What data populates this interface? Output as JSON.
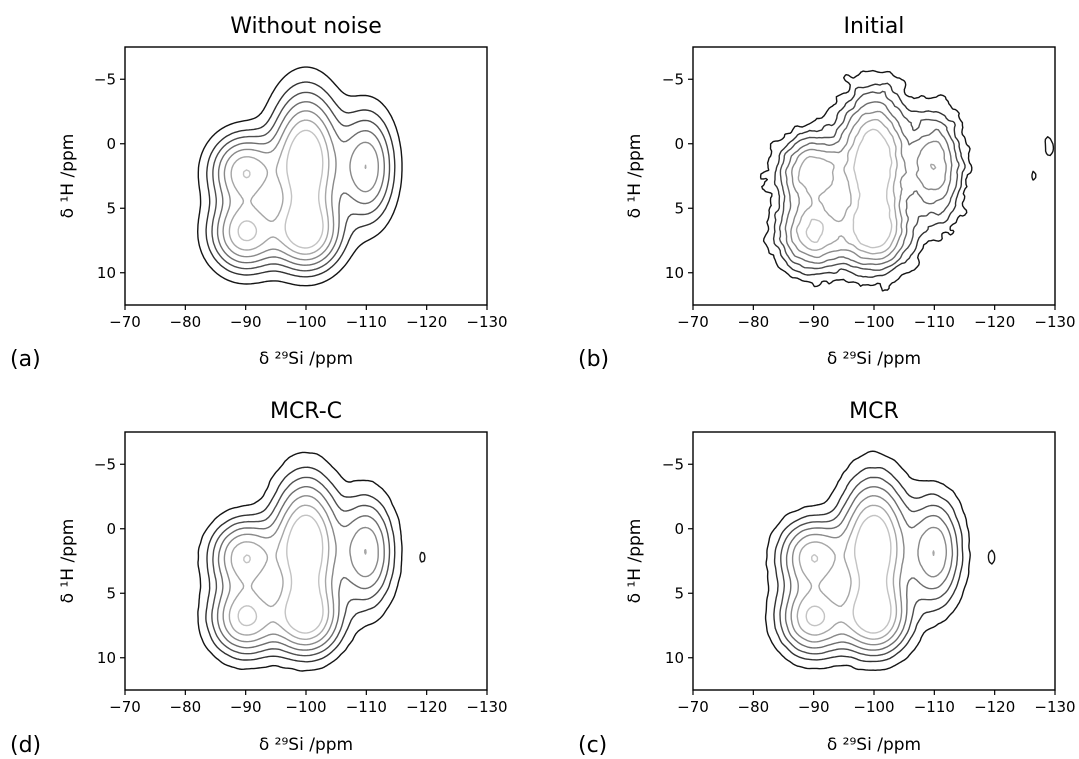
{
  "figure": {
    "panels": [
      {
        "id": "a",
        "label": "(a)",
        "title": "Without noise",
        "xlabel": "δ ²⁹Si /ppm",
        "ylabel": "δ ¹H /ppm"
      },
      {
        "id": "b",
        "label": "(b)",
        "title": "Initial",
        "xlabel": "δ ²⁹Si /ppm",
        "ylabel": "δ ¹H /ppm"
      },
      {
        "id": "d",
        "label": "(d)",
        "title": "MCR-C",
        "xlabel": "δ ²⁹Si /ppm",
        "ylabel": "δ ¹H /ppm"
      },
      {
        "id": "c",
        "label": "(c)",
        "title": "MCR",
        "xlabel": "δ ²⁹Si /ppm",
        "ylabel": "δ ¹H /ppm"
      }
    ]
  },
  "chart_data": [
    {
      "type": "contour",
      "title": "Without noise",
      "xlabel": "δ ²⁹Si /ppm",
      "ylabel": "δ ¹H /ppm",
      "xlim": [
        -70,
        -130
      ],
      "ylim": [
        12.5,
        -7.5
      ],
      "xticks": [
        -70,
        -80,
        -90,
        -100,
        -110,
        -120,
        -130
      ],
      "yticks": [
        -5,
        0,
        5,
        10
      ],
      "peaks": [
        {
          "x": -90,
          "y": 2.2,
          "sx": 3.4,
          "sy": 1.7,
          "a": 0.7
        },
        {
          "x": -100,
          "y": 1.4,
          "sx": 3.3,
          "sy": 3.0,
          "a": 1.0
        },
        {
          "x": -110,
          "y": 1.8,
          "sx": 2.7,
          "sy": 2.5,
          "a": 0.55
        },
        {
          "x": -90,
          "y": 6.9,
          "sx": 3.4,
          "sy": 1.7,
          "a": 0.75
        },
        {
          "x": -100,
          "y": 6.9,
          "sx": 3.4,
          "sy": 1.7,
          "a": 0.8
        }
      ],
      "levels": [
        0.05,
        0.12,
        0.2,
        0.3,
        0.42,
        0.56,
        0.72
      ],
      "noise": 0
    },
    {
      "type": "contour",
      "title": "Initial",
      "xlabel": "δ ²⁹Si /ppm",
      "ylabel": "δ ¹H /ppm",
      "xlim": [
        -70,
        -130
      ],
      "ylim": [
        12.5,
        -7.5
      ],
      "xticks": [
        -70,
        -80,
        -90,
        -100,
        -110,
        -120,
        -130
      ],
      "yticks": [
        -5,
        0,
        5,
        10
      ],
      "peaks": [
        {
          "x": -90,
          "y": 2.2,
          "sx": 3.4,
          "sy": 1.7,
          "a": 0.7
        },
        {
          "x": -100,
          "y": 1.4,
          "sx": 3.3,
          "sy": 3.0,
          "a": 1.0
        },
        {
          "x": -110,
          "y": 1.8,
          "sx": 2.7,
          "sy": 2.5,
          "a": 0.55
        },
        {
          "x": -90,
          "y": 6.9,
          "sx": 3.4,
          "sy": 1.7,
          "a": 0.75
        },
        {
          "x": -100,
          "y": 6.9,
          "sx": 3.4,
          "sy": 1.7,
          "a": 0.8
        },
        {
          "x": -129,
          "y": 0.3,
          "sx": 0.5,
          "sy": 0.6,
          "a": 0.1
        },
        {
          "x": -126.5,
          "y": 2.5,
          "sx": 0.3,
          "sy": 0.5,
          "a": 0.08
        }
      ],
      "levels": [
        0.05,
        0.12,
        0.2,
        0.3,
        0.42,
        0.56,
        0.72
      ],
      "noise": 0.035
    },
    {
      "type": "contour",
      "title": "MCR-C",
      "xlabel": "δ ²⁹Si /ppm",
      "ylabel": "δ ¹H /ppm",
      "xlim": [
        -70,
        -130
      ],
      "ylim": [
        12.5,
        -7.5
      ],
      "xticks": [
        -70,
        -80,
        -90,
        -100,
        -110,
        -120,
        -130
      ],
      "yticks": [
        -5,
        0,
        5,
        10
      ],
      "peaks": [
        {
          "x": -90,
          "y": 2.2,
          "sx": 3.4,
          "sy": 1.7,
          "a": 0.7
        },
        {
          "x": -100,
          "y": 1.4,
          "sx": 3.3,
          "sy": 3.0,
          "a": 1.0
        },
        {
          "x": -110,
          "y": 1.8,
          "sx": 2.7,
          "sy": 2.5,
          "a": 0.55
        },
        {
          "x": -90,
          "y": 6.9,
          "sx": 3.4,
          "sy": 1.7,
          "a": 0.75
        },
        {
          "x": -100,
          "y": 6.9,
          "sx": 3.4,
          "sy": 1.7,
          "a": 0.8
        },
        {
          "x": -119.3,
          "y": 2.2,
          "sx": 0.4,
          "sy": 0.4,
          "a": 0.08
        }
      ],
      "levels": [
        0.05,
        0.12,
        0.2,
        0.3,
        0.42,
        0.56,
        0.72
      ],
      "noise": 0.004
    },
    {
      "type": "contour",
      "title": "MCR",
      "xlabel": "δ ²⁹Si /ppm",
      "ylabel": "δ ¹H /ppm",
      "xlim": [
        -70,
        -130
      ],
      "ylim": [
        12.5,
        -7.5
      ],
      "xticks": [
        -70,
        -80,
        -90,
        -100,
        -110,
        -120,
        -130
      ],
      "yticks": [
        -5,
        0,
        5,
        10
      ],
      "peaks": [
        {
          "x": -90,
          "y": 2.2,
          "sx": 3.4,
          "sy": 1.7,
          "a": 0.7
        },
        {
          "x": -100,
          "y": 1.4,
          "sx": 3.3,
          "sy": 3.0,
          "a": 1.0
        },
        {
          "x": -110,
          "y": 1.8,
          "sx": 2.7,
          "sy": 2.5,
          "a": 0.55
        },
        {
          "x": -90,
          "y": 6.9,
          "sx": 3.4,
          "sy": 1.7,
          "a": 0.75
        },
        {
          "x": -100,
          "y": 6.9,
          "sx": 3.4,
          "sy": 1.7,
          "a": 0.8
        },
        {
          "x": -119.5,
          "y": 2.2,
          "sx": 0.45,
          "sy": 0.5,
          "a": 0.09
        }
      ],
      "levels": [
        0.05,
        0.12,
        0.2,
        0.3,
        0.42,
        0.56,
        0.72
      ],
      "noise": 0.006
    }
  ]
}
